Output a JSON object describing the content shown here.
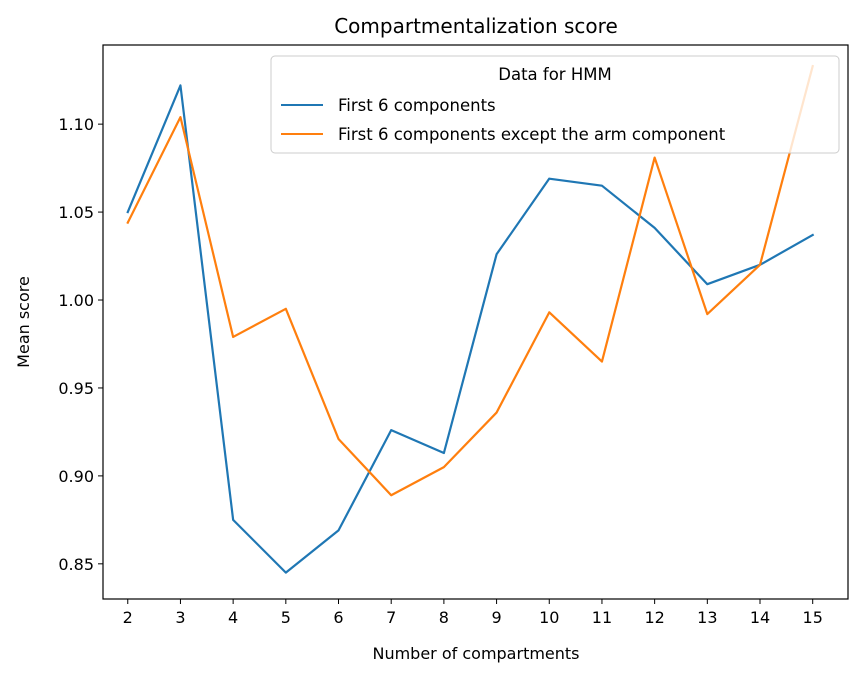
{
  "chart_data": {
    "type": "line",
    "title": "Compartmentalization score",
    "xlabel": "Number of compartments",
    "ylabel": "Mean score",
    "x": [
      2,
      3,
      4,
      5,
      6,
      7,
      8,
      9,
      10,
      11,
      12,
      13,
      14,
      15
    ],
    "xlim": [
      1.53,
      15.67
    ],
    "ylim": [
      0.83,
      1.145
    ],
    "yticks": [
      0.85,
      0.9,
      0.95,
      1.0,
      1.05,
      1.1
    ],
    "ytick_labels": [
      "0.85",
      "0.90",
      "0.95",
      "1.00",
      "1.05",
      "1.10"
    ],
    "grid": false,
    "legend": {
      "title": "Data for HMM",
      "placement": "upper right"
    },
    "series": [
      {
        "name": "First 6 components",
        "color": "#1f77b4",
        "values": [
          1.05,
          1.122,
          0.875,
          0.845,
          0.869,
          0.926,
          0.913,
          1.026,
          1.069,
          1.065,
          1.041,
          1.009,
          1.02,
          1.037
        ]
      },
      {
        "name": "First 6 components except the arm component",
        "color": "#ff7f0e",
        "values": [
          1.044,
          1.104,
          0.979,
          0.995,
          0.921,
          0.889,
          0.905,
          0.936,
          0.993,
          0.965,
          1.081,
          0.992,
          1.02,
          1.133
        ]
      }
    ]
  }
}
